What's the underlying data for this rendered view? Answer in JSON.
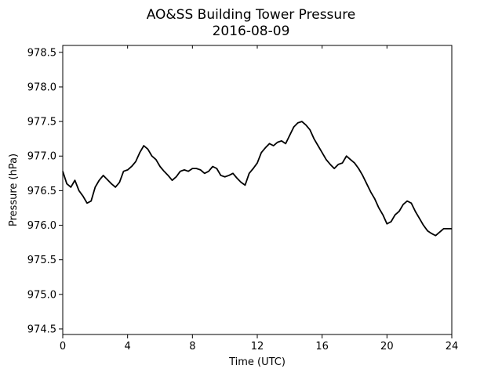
{
  "chart_data": {
    "type": "line",
    "title": "AO&SS Building Tower Pressure",
    "subtitle": "2016-08-09",
    "xlabel": "Time (UTC)",
    "ylabel": "Pressure (hPa)",
    "xlim": [
      0,
      24
    ],
    "ylim": [
      974.42,
      978.6
    ],
    "x_ticks": [
      0,
      4,
      8,
      12,
      16,
      20,
      24
    ],
    "x_tick_labels": [
      "0",
      "4",
      "8",
      "12",
      "16",
      "20",
      "24"
    ],
    "y_ticks": [
      974.5,
      975.0,
      975.5,
      976.0,
      976.5,
      977.0,
      977.5,
      978.0,
      978.5
    ],
    "y_tick_labels": [
      "974.5",
      "975.0",
      "975.5",
      "976.0",
      "976.5",
      "977.0",
      "977.5",
      "978.0",
      "978.5"
    ],
    "grid": false,
    "line_color": "#000000",
    "series": [
      {
        "x": [
          0,
          0.25,
          0.5,
          0.75,
          1.0,
          1.25,
          1.5,
          1.75,
          2.0,
          2.25,
          2.5,
          2.75,
          3.0,
          3.25,
          3.5,
          3.75,
          4.0,
          4.25,
          4.5,
          4.75,
          5.0,
          5.25,
          5.5,
          5.75,
          6.0,
          6.25,
          6.5,
          6.75,
          7.0,
          7.25,
          7.5,
          7.75,
          8.0,
          8.25,
          8.5,
          8.75,
          9.0,
          9.25,
          9.5,
          9.75,
          10.0,
          10.25,
          10.5,
          10.75,
          11.0,
          11.25,
          11.5,
          11.75,
          12.0,
          12.25,
          12.5,
          12.75,
          13.0,
          13.25,
          13.5,
          13.75,
          14.0,
          14.25,
          14.5,
          14.75,
          15.0,
          15.25,
          15.5,
          15.75,
          16.0,
          16.25,
          16.5,
          16.75,
          17.0,
          17.25,
          17.5,
          17.75,
          18.0,
          18.25,
          18.5,
          18.75,
          19.0,
          19.25,
          19.5,
          19.75,
          20.0,
          20.25,
          20.5,
          20.75,
          21.0,
          21.25,
          21.5,
          21.75,
          22.0,
          22.25,
          22.5,
          22.75,
          23.0,
          23.25,
          23.5,
          23.75,
          24.0
        ],
        "values": [
          976.78,
          976.6,
          976.55,
          976.65,
          976.5,
          976.42,
          976.32,
          976.35,
          976.55,
          976.65,
          976.72,
          976.66,
          976.6,
          976.55,
          976.62,
          976.78,
          976.8,
          976.85,
          976.92,
          977.05,
          977.15,
          977.1,
          977.0,
          976.95,
          976.85,
          976.78,
          976.72,
          976.65,
          976.7,
          976.78,
          976.8,
          976.78,
          976.82,
          976.82,
          976.8,
          976.75,
          976.78,
          976.85,
          976.82,
          976.72,
          976.7,
          976.72,
          976.75,
          976.68,
          976.62,
          976.58,
          976.75,
          976.82,
          976.9,
          977.05,
          977.12,
          977.18,
          977.15,
          977.2,
          977.22,
          977.18,
          977.3,
          977.42,
          977.48,
          977.5,
          977.45,
          977.38,
          977.25,
          977.15,
          977.05,
          976.95,
          976.88,
          976.82,
          976.88,
          976.9,
          977.0,
          976.95,
          976.9,
          976.82,
          976.72,
          976.6,
          976.48,
          976.38,
          976.25,
          976.15,
          976.02,
          976.05,
          976.15,
          976.2,
          976.3,
          976.35,
          976.32,
          976.2,
          976.1,
          976.0,
          975.92,
          975.88,
          975.85,
          975.9,
          975.95,
          975.95,
          975.95
        ]
      }
    ]
  }
}
